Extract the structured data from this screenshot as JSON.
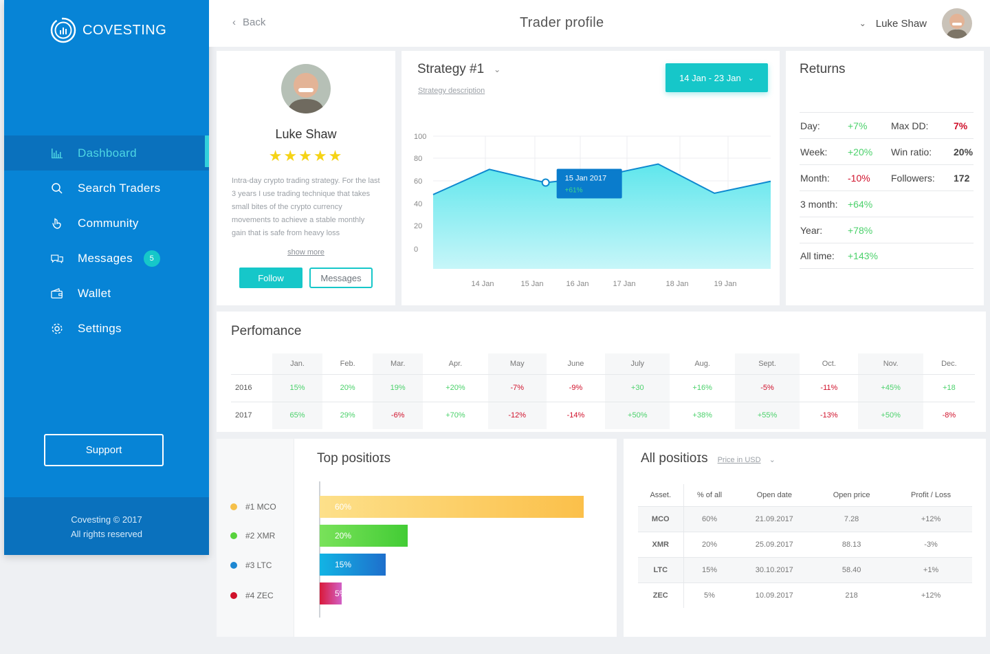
{
  "brand": {
    "name": "COVESTING"
  },
  "sidebar": {
    "items": [
      {
        "label": "Dashboard",
        "icon": "bar-chart-icon"
      },
      {
        "label": "Search Traders",
        "icon": "search-icon"
      },
      {
        "label": "Community",
        "icon": "hand-icon"
      },
      {
        "label": "Messages",
        "icon": "chat-icon",
        "badge": "5"
      },
      {
        "label": "Wallet",
        "icon": "wallet-icon"
      },
      {
        "label": "Settings",
        "icon": "gear-icon"
      }
    ],
    "support_label": "Support",
    "footer_line1": "Covesting © 2017",
    "footer_line2": "All rights reserved"
  },
  "header": {
    "back_label": "Back",
    "title": "Trader profile",
    "user_name": "Luke Shaw"
  },
  "profile": {
    "name": "Luke Shaw",
    "rating": 5,
    "stars": "★★★★★",
    "description": "Intra-day crypto trading strategy. For the last 3 years I use trading technique that takes small bites of the crypto currency movements to achieve a stable monthly gain that is safe from heavy loss",
    "show_more": "show more",
    "follow_label": "Follow",
    "messages_label": "Messages"
  },
  "strategy": {
    "title": "Strategy #1",
    "description_link": "Strategy description",
    "date_range": "14 Jan - 23 Jan",
    "tooltip_date": "15 Jan 2017",
    "tooltip_value": "+61%"
  },
  "chart_data": {
    "type": "area",
    "y_ticks": [
      "100",
      "80",
      "60",
      "40",
      "20",
      "0"
    ],
    "ylim": [
      0,
      100
    ],
    "x_labels": [
      "14 Jan",
      "15 Jan",
      "16 Jan",
      "17 Jan",
      "18 Jan",
      "19 Jan"
    ],
    "points": [
      {
        "x": 0,
        "y": 56
      },
      {
        "x": 1,
        "y": 75
      },
      {
        "x": 2,
        "y": 65
      },
      {
        "x": 3,
        "y": 70
      },
      {
        "x": 4,
        "y": 79
      },
      {
        "x": 5,
        "y": 57
      },
      {
        "x": 6,
        "y": 66
      }
    ],
    "highlight_index": 2,
    "colors": {
      "line": "#0d88cf",
      "fill_top": "#5fe6ec",
      "fill_bottom": "#c7f6f9"
    }
  },
  "returns": {
    "title": "Returns",
    "rows": [
      {
        "label": "Day:",
        "value": "+7%",
        "sign": "pos",
        "label2": "Max DD:",
        "value2": "7%",
        "sign2": "neg"
      },
      {
        "label": "Week:",
        "value": "+20%",
        "sign": "pos",
        "label2": "Win ratio:",
        "value2": "20%",
        "sign2": "plain"
      },
      {
        "label": "Month:",
        "value": "-10%",
        "sign": "neg",
        "label2": "Followers:",
        "value2": "172",
        "sign2": "plain"
      },
      {
        "label": "3 month:",
        "value": "+64%",
        "sign": "pos"
      },
      {
        "label": "Year:",
        "value": "+78%",
        "sign": "pos"
      },
      {
        "label": "All time:",
        "value": "+143%",
        "sign": "pos"
      }
    ]
  },
  "performance": {
    "title": "Perfomance",
    "months": [
      "Jan.",
      "Feb.",
      "Mar.",
      "Apr.",
      "May",
      "June",
      "July",
      "Aug.",
      "Sept.",
      "Oct.",
      "Nov.",
      "Dec."
    ],
    "rows": [
      {
        "year": "2016",
        "values": [
          "15%",
          "20%",
          "19%",
          "+20%",
          "-7%",
          "-9%",
          "+30",
          "+16%",
          "-5%",
          "-11%",
          "+45%",
          "+18"
        ]
      },
      {
        "year": "2017",
        "values": [
          "65%",
          "29%",
          "-6%",
          "+70%",
          "-12%",
          "-14%",
          "+50%",
          "+38%",
          "+55%",
          "-13%",
          "+50%",
          "-8%"
        ]
      }
    ]
  },
  "top_positions": {
    "title": "Top positioɪs",
    "items": [
      {
        "label": "#1 MCO",
        "value": "60%",
        "percent": 60,
        "color": "#f5c04a",
        "grad": [
          "#fde08a",
          "#fbc04a"
        ]
      },
      {
        "label": "#2 XMR",
        "value": "20%",
        "percent": 20,
        "color": "#57d23c",
        "grad": [
          "#79e25a",
          "#43cc35"
        ]
      },
      {
        "label": "#3 LTC",
        "value": "15%",
        "percent": 15,
        "color": "#1d87d2",
        "grad": [
          "#12b4e4",
          "#1e6fcc"
        ]
      },
      {
        "label": "#4 ZEC",
        "value": "5%",
        "percent": 5,
        "color": "#d0112b",
        "grad": [
          "#d91a3a",
          "#d260c6"
        ]
      }
    ]
  },
  "all_positions": {
    "title": "All positioɪs",
    "price_filter": "Price in USD",
    "headers": [
      "Asset.",
      "% of all",
      "Open date",
      "Open  price",
      "Profit / Loss"
    ],
    "rows": [
      {
        "asset": "MCO",
        "pct": "60%",
        "date": "21.09.2017",
        "price": "7.28",
        "pl": "+12%",
        "sign": "pos"
      },
      {
        "asset": "XMR",
        "pct": "20%",
        "date": "25.09.2017",
        "price": "88.13",
        "pl": "-3%",
        "sign": "neg"
      },
      {
        "asset": "LTC",
        "pct": "15%",
        "date": "30.10.2017",
        "price": "58.40",
        "pl": "+1%",
        "sign": "pos"
      },
      {
        "asset": "ZEC",
        "pct": "5%",
        "date": "10.09.2017",
        "price": "218",
        "pl": "+12%",
        "sign": "pos"
      }
    ]
  }
}
